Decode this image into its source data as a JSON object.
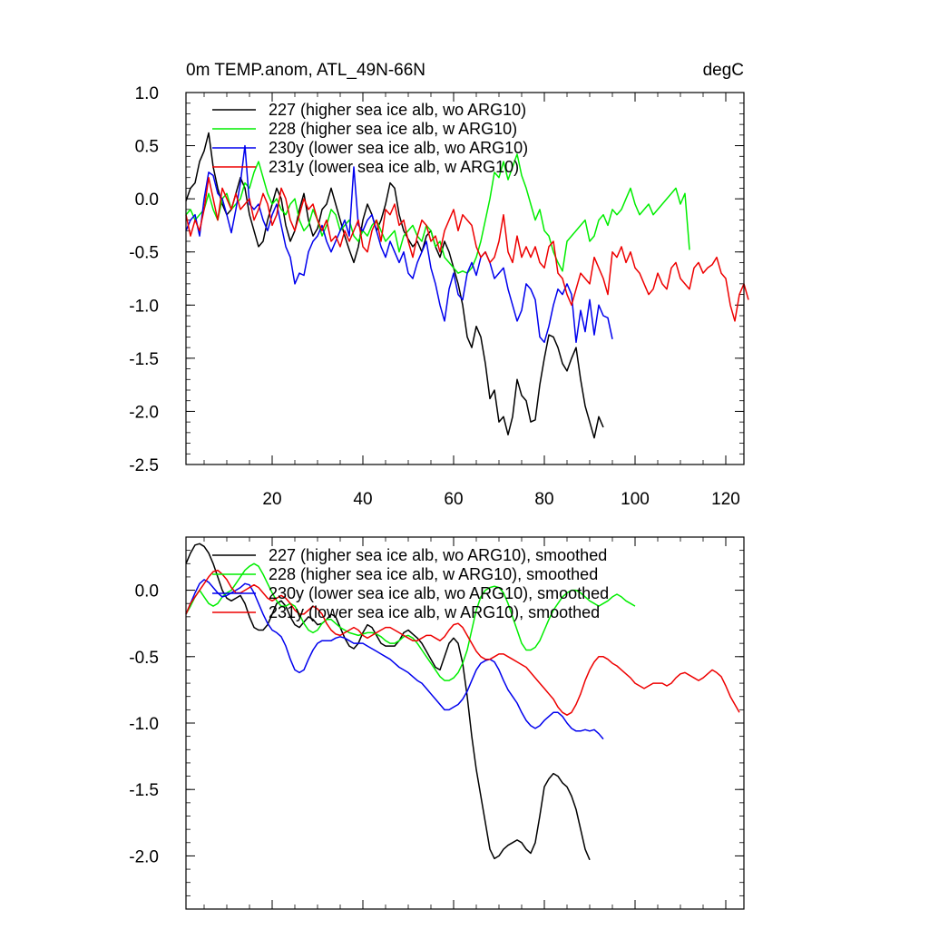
{
  "chart_data": [
    {
      "type": "line",
      "title": "0m TEMP.anom, ATL_49N-66N",
      "units": "degC",
      "xlim": [
        1,
        124
      ],
      "ylim": [
        -2.5,
        1.0
      ],
      "x_ticks": [
        20,
        40,
        60,
        80,
        100,
        120
      ],
      "x_tick_labels": [
        "20",
        "40",
        "60",
        "80",
        "100",
        "120"
      ],
      "y_ticks": [
        1.0,
        0.5,
        0.0,
        -0.5,
        -1.0,
        -1.5,
        -2.0,
        -2.5
      ],
      "y_tick_labels": [
        "1.0",
        "0.5",
        "0.0",
        "-0.5",
        "-1.0",
        "-1.5",
        "-2.0",
        "-2.5"
      ],
      "grid": false,
      "legend_position": "top-left",
      "series": [
        {
          "name": "227 (higher sea ice alb, wo ARG10)",
          "color": "#000000",
          "x_start": 1,
          "values": [
            -0.02,
            0.1,
            0.15,
            0.35,
            0.45,
            0.62,
            0.3,
            0.1,
            -0.05,
            -0.15,
            -0.1,
            0.05,
            0.2,
            0.1,
            -0.15,
            -0.3,
            -0.45,
            -0.4,
            -0.2,
            -0.05,
            0.1,
            0.0,
            -0.25,
            -0.4,
            -0.3,
            -0.1,
            0.05,
            -0.2,
            -0.35,
            -0.28,
            -0.1,
            -0.05,
            0.1,
            -0.05,
            -0.2,
            -0.35,
            -0.48,
            -0.6,
            -0.45,
            -0.2,
            -0.05,
            -0.15,
            -0.3,
            -0.2,
            -0.05,
            0.15,
            0.1,
            -0.15,
            -0.3,
            -0.38,
            -0.45,
            -0.4,
            -0.5,
            -0.35,
            -0.3,
            -0.45,
            -0.55,
            -0.4,
            -0.5,
            -0.65,
            -0.8,
            -1.0,
            -1.3,
            -1.4,
            -1.2,
            -1.3,
            -1.55,
            -1.88,
            -1.8,
            -2.1,
            -2.05,
            -2.22,
            -2.05,
            -1.7,
            -1.85,
            -1.9,
            -2.1,
            -2.08,
            -1.75,
            -1.5,
            -1.28,
            -1.3,
            -1.4,
            -1.55,
            -1.62,
            -1.5,
            -1.4,
            -1.7,
            -1.95,
            -2.1,
            -2.25,
            -2.05,
            -2.15
          ],
          "smoothed": [
            0.2,
            0.28,
            0.34,
            0.35,
            0.33,
            0.28,
            0.2,
            0.1,
            0.0,
            -0.06,
            -0.08,
            -0.06,
            -0.04,
            -0.1,
            -0.2,
            -0.28,
            -0.3,
            -0.3,
            -0.26,
            -0.18,
            -0.1,
            -0.08,
            -0.12,
            -0.2,
            -0.26,
            -0.28,
            -0.24,
            -0.2,
            -0.22,
            -0.26,
            -0.25,
            -0.22,
            -0.18,
            -0.2,
            -0.28,
            -0.36,
            -0.42,
            -0.44,
            -0.4,
            -0.32,
            -0.26,
            -0.28,
            -0.34,
            -0.4,
            -0.42,
            -0.42,
            -0.42,
            -0.38,
            -0.32,
            -0.3,
            -0.33,
            -0.36,
            -0.4,
            -0.46,
            -0.52,
            -0.58,
            -0.6,
            -0.5,
            -0.4,
            -0.36,
            -0.4,
            -0.55,
            -0.8,
            -1.1,
            -1.35,
            -1.55,
            -1.75,
            -1.95,
            -2.02,
            -2.0,
            -1.95,
            -1.92,
            -1.9,
            -1.88,
            -1.9,
            -1.95,
            -1.98,
            -1.9,
            -1.7,
            -1.48,
            -1.42,
            -1.38,
            -1.4,
            -1.45,
            -1.48,
            -1.55,
            -1.65,
            -1.8,
            -1.95,
            -2.03
          ]
        },
        {
          "name": "228 (higher sea ice alb, w ARG10)",
          "color": "#00ee00",
          "x_start": 1,
          "values": [
            -0.15,
            -0.1,
            -0.2,
            -0.15,
            -0.1,
            0.05,
            -0.1,
            -0.2,
            0.0,
            0.05,
            -0.1,
            -0.05,
            0.0,
            0.15,
            0.1,
            0.25,
            0.35,
            0.2,
            0.05,
            -0.05,
            0.0,
            -0.1,
            -0.15,
            -0.05,
            0.0,
            -0.2,
            -0.3,
            -0.25,
            -0.1,
            -0.2,
            -0.35,
            -0.25,
            -0.1,
            -0.15,
            -0.3,
            -0.25,
            -0.2,
            -0.35,
            -0.4,
            -0.3,
            -0.35,
            -0.25,
            -0.2,
            -0.3,
            -0.4,
            -0.35,
            -0.3,
            -0.5,
            -0.35,
            -0.3,
            -0.25,
            -0.35,
            -0.4,
            -0.25,
            -0.3,
            -0.45,
            -0.4,
            -0.55,
            -0.6,
            -0.65,
            -0.7,
            -0.68,
            -0.7,
            -0.65,
            -0.55,
            -0.4,
            -0.2,
            0.0,
            0.25,
            0.2,
            0.35,
            0.18,
            0.3,
            0.42,
            0.22,
            0.1,
            -0.05,
            -0.2,
            -0.1,
            -0.3,
            -0.35,
            -0.5,
            -0.6,
            -0.68,
            -0.4,
            -0.35,
            -0.3,
            -0.25,
            -0.2,
            -0.4,
            -0.35,
            -0.2,
            -0.15,
            -0.25,
            -0.1,
            -0.15,
            -0.1,
            0.0,
            0.1,
            -0.05,
            -0.15,
            -0.1,
            -0.05,
            -0.15,
            -0.1,
            -0.05,
            0.0,
            0.05,
            0.1,
            -0.05,
            0.05,
            -0.48
          ],
          "smoothed": [
            -0.18,
            -0.12,
            -0.05,
            0.0,
            -0.05,
            -0.1,
            -0.12,
            -0.1,
            -0.05,
            -0.02,
            0.0,
            0.05,
            0.1,
            0.15,
            0.18,
            0.2,
            0.18,
            0.12,
            0.05,
            -0.02,
            -0.08,
            -0.12,
            -0.12,
            -0.1,
            -0.12,
            -0.18,
            -0.25,
            -0.3,
            -0.32,
            -0.3,
            -0.25,
            -0.22,
            -0.22,
            -0.25,
            -0.28,
            -0.3,
            -0.32,
            -0.33,
            -0.34,
            -0.33,
            -0.32,
            -0.32,
            -0.33,
            -0.35,
            -0.38,
            -0.4,
            -0.4,
            -0.38,
            -0.35,
            -0.34,
            -0.36,
            -0.4,
            -0.45,
            -0.5,
            -0.55,
            -0.6,
            -0.65,
            -0.68,
            -0.68,
            -0.66,
            -0.62,
            -0.55,
            -0.45,
            -0.3,
            -0.15,
            -0.05,
            0.0,
            0.02,
            0.03,
            0.02,
            -0.02,
            -0.1,
            -0.2,
            -0.3,
            -0.4,
            -0.45,
            -0.45,
            -0.43,
            -0.38,
            -0.3,
            -0.22,
            -0.15,
            -0.1,
            -0.05,
            -0.02,
            0.0,
            0.0,
            -0.02,
            -0.05,
            -0.08,
            -0.1,
            -0.12,
            -0.1,
            -0.08,
            -0.05,
            -0.03,
            -0.05,
            -0.08,
            -0.1,
            -0.12
          ]
        },
        {
          "name": "230y (lower sea ice alb, wo ARG10)",
          "color": "#0000ee",
          "x_start": 1,
          "values": [
            -0.3,
            -0.2,
            -0.15,
            -0.35,
            0.0,
            0.25,
            0.22,
            0.05,
            0.0,
            -0.15,
            -0.32,
            -0.1,
            0.15,
            0.5,
            -0.05,
            -0.1,
            -0.05,
            -0.2,
            -0.3,
            -0.15,
            -0.05,
            -0.25,
            -0.45,
            -0.55,
            -0.8,
            -0.7,
            -0.72,
            -0.5,
            -0.4,
            -0.35,
            -0.25,
            -0.4,
            -0.5,
            -0.4,
            -0.3,
            -0.2,
            -0.35,
            0.3,
            -0.25,
            -0.3,
            -0.2,
            -0.15,
            -0.3,
            -0.45,
            -0.55,
            -0.4,
            -0.5,
            -0.6,
            -0.5,
            -0.7,
            -0.75,
            -0.6,
            -0.5,
            -0.4,
            -0.65,
            -0.8,
            -1.0,
            -1.15,
            -0.85,
            -0.7,
            -0.9,
            -0.95,
            -0.7,
            -0.6,
            -0.72,
            -0.55,
            -0.5,
            -0.6,
            -0.75,
            -0.7,
            -0.65,
            -0.85,
            -1.0,
            -1.15,
            -1.05,
            -0.8,
            -0.85,
            -0.95,
            -1.3,
            -1.35,
            -1.2,
            -1.0,
            -0.85,
            -0.9,
            -0.8,
            -0.9,
            -1.35,
            -1.05,
            -1.25,
            -0.95,
            -1.28,
            -1.0,
            -1.1,
            -1.12,
            -1.32
          ],
          "smoothed": [
            -0.18,
            -0.1,
            -0.02,
            0.05,
            0.08,
            0.06,
            0.02,
            -0.02,
            -0.05,
            -0.04,
            -0.02,
            0.0,
            0.02,
            0.05,
            0.04,
            -0.02,
            -0.1,
            -0.18,
            -0.25,
            -0.3,
            -0.32,
            -0.35,
            -0.42,
            -0.52,
            -0.6,
            -0.62,
            -0.6,
            -0.52,
            -0.45,
            -0.4,
            -0.38,
            -0.38,
            -0.38,
            -0.36,
            -0.35,
            -0.36,
            -0.38,
            -0.4,
            -0.4,
            -0.4,
            -0.42,
            -0.44,
            -0.46,
            -0.48,
            -0.5,
            -0.52,
            -0.55,
            -0.58,
            -0.6,
            -0.62,
            -0.65,
            -0.68,
            -0.7,
            -0.74,
            -0.78,
            -0.82,
            -0.86,
            -0.9,
            -0.9,
            -0.88,
            -0.86,
            -0.82,
            -0.76,
            -0.68,
            -0.6,
            -0.55,
            -0.53,
            -0.52,
            -0.54,
            -0.6,
            -0.68,
            -0.75,
            -0.8,
            -0.85,
            -0.92,
            -0.98,
            -1.02,
            -1.04,
            -1.02,
            -0.98,
            -0.95,
            -0.92,
            -0.92,
            -0.95,
            -1.0,
            -1.04,
            -1.06,
            -1.06,
            -1.05,
            -1.06,
            -1.05,
            -1.08,
            -1.12
          ]
        },
        {
          "name": "231y (lower sea ice alb, w ARG10)",
          "color": "#ee0000",
          "x_start": 1,
          "values": [
            -0.15,
            -0.35,
            -0.2,
            -0.3,
            -0.1,
            0.2,
            0.0,
            -0.2,
            0.1,
            0.0,
            -0.1,
            0.05,
            -0.1,
            -0.05,
            0.0,
            -0.2,
            -0.1,
            0.05,
            -0.05,
            -0.25,
            -0.15,
            0.1,
            0.0,
            -0.2,
            -0.3,
            -0.15,
            0.0,
            -0.1,
            -0.05,
            -0.2,
            -0.3,
            -0.2,
            -0.4,
            -0.35,
            -0.45,
            -0.3,
            -0.4,
            -0.3,
            -0.2,
            -0.45,
            -0.5,
            -0.3,
            -0.2,
            -0.4,
            -0.1,
            -0.15,
            -0.05,
            -0.25,
            -0.2,
            -0.4,
            -0.55,
            -0.35,
            -0.2,
            -0.25,
            -0.4,
            -0.35,
            -0.5,
            -0.3,
            -0.2,
            -0.1,
            -0.3,
            -0.15,
            -0.2,
            -0.25,
            -0.45,
            -0.55,
            -0.5,
            -0.6,
            -0.55,
            -0.4,
            -0.15,
            -0.5,
            -0.6,
            -0.35,
            -0.55,
            -0.45,
            -0.55,
            -0.45,
            -0.6,
            -0.65,
            -0.45,
            -0.4,
            -0.7,
            -0.75,
            -0.9,
            -1.0,
            -0.85,
            -0.7,
            -0.75,
            -0.8,
            -0.55,
            -0.65,
            -0.75,
            -0.9,
            -0.5,
            -0.55,
            -0.45,
            -0.6,
            -0.5,
            -0.65,
            -0.7,
            -0.8,
            -0.9,
            -0.85,
            -0.7,
            -0.8,
            -0.85,
            -0.65,
            -0.6,
            -0.75,
            -0.8,
            -0.85,
            -0.65,
            -0.6,
            -0.7,
            -0.65,
            -0.62,
            -0.55,
            -0.7,
            -0.75,
            -1.0,
            -1.15,
            -0.9,
            -0.8,
            -0.95
          ],
          "smoothed": [
            -0.18,
            -0.1,
            -0.05,
            0.0,
            0.05,
            0.1,
            0.14,
            0.15,
            0.12,
            0.08,
            0.02,
            -0.02,
            -0.02,
            0.0,
            0.02,
            0.04,
            0.02,
            -0.02,
            -0.06,
            -0.08,
            -0.06,
            -0.04,
            -0.06,
            -0.1,
            -0.15,
            -0.18,
            -0.18,
            -0.15,
            -0.12,
            -0.14,
            -0.18,
            -0.25,
            -0.3,
            -0.33,
            -0.34,
            -0.32,
            -0.3,
            -0.28,
            -0.3,
            -0.34,
            -0.36,
            -0.34,
            -0.32,
            -0.3,
            -0.28,
            -0.28,
            -0.3,
            -0.32,
            -0.34,
            -0.36,
            -0.38,
            -0.38,
            -0.36,
            -0.34,
            -0.34,
            -0.36,
            -0.38,
            -0.35,
            -0.3,
            -0.26,
            -0.25,
            -0.28,
            -0.34,
            -0.4,
            -0.46,
            -0.5,
            -0.52,
            -0.52,
            -0.5,
            -0.48,
            -0.48,
            -0.5,
            -0.52,
            -0.54,
            -0.56,
            -0.58,
            -0.62,
            -0.66,
            -0.7,
            -0.74,
            -0.78,
            -0.82,
            -0.88,
            -0.92,
            -0.94,
            -0.92,
            -0.86,
            -0.78,
            -0.68,
            -0.6,
            -0.54,
            -0.5,
            -0.5,
            -0.52,
            -0.55,
            -0.57,
            -0.6,
            -0.63,
            -0.66,
            -0.7,
            -0.72,
            -0.74,
            -0.72,
            -0.7,
            -0.7,
            -0.7,
            -0.72,
            -0.7,
            -0.66,
            -0.63,
            -0.62,
            -0.64,
            -0.66,
            -0.68,
            -0.66,
            -0.63,
            -0.6,
            -0.62,
            -0.65,
            -0.72,
            -0.8,
            -0.86,
            -0.92
          ]
        }
      ]
    },
    {
      "type": "line",
      "title": "",
      "xlim": [
        1,
        124
      ],
      "ylim": [
        -2.4,
        0.4
      ],
      "x_ticks": [
        20,
        40,
        60,
        80,
        100,
        120
      ],
      "y_ticks": [
        0.0,
        -0.5,
        -1.0,
        -1.5,
        -2.0
      ],
      "y_tick_labels": [
        "0.0",
        "-0.5",
        "-1.0",
        "-1.5",
        "-2.0"
      ],
      "grid": false,
      "legend_position": "top-left",
      "legend_labels": [
        "227 (higher sea ice alb, wo ARG10), smoothed",
        "228 (higher sea ice alb, w ARG10), smoothed",
        "230y (lower sea ice alb, wo ARG10), smoothed",
        "231y (lower sea ice alb, w ARG10), smoothed"
      ]
    }
  ]
}
